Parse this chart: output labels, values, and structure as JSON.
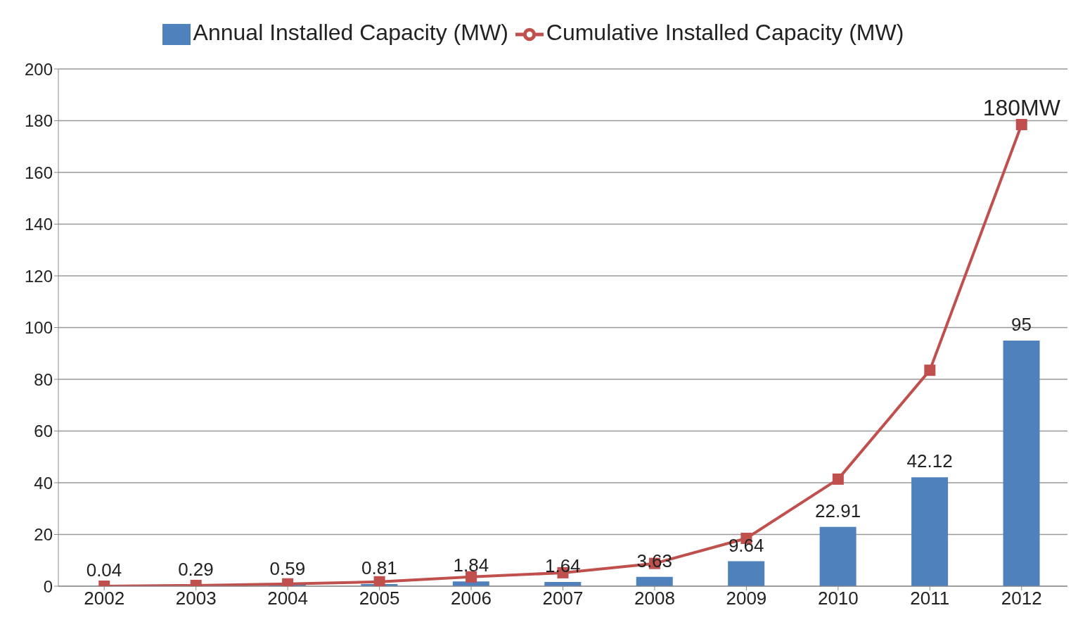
{
  "chart_data": {
    "type": "bar",
    "categories": [
      "2002",
      "2003",
      "2004",
      "2005",
      "2006",
      "2007",
      "2008",
      "2009",
      "2010",
      "2011",
      "2012"
    ],
    "series": [
      {
        "name": "Annual Installed Capacity (MW)",
        "color": "#4f81bd",
        "values": [
          0.04,
          0.29,
          0.59,
          0.81,
          1.84,
          1.64,
          3.63,
          9.64,
          22.91,
          42.12,
          95
        ],
        "value_labels": [
          "0.04",
          "0.29",
          "0.59",
          "0.81",
          "1.84",
          "1.64",
          "3.63",
          "9.64",
          "22.91",
          "42.12",
          "95"
        ]
      },
      {
        "name": "Cumulative Installed Capacity (MW)",
        "type": "line",
        "color": "#c0504d",
        "values": [
          0,
          0.3,
          0.9,
          1.7,
          3.6,
          5.2,
          8.8,
          18.5,
          41.4,
          83.5,
          178.5
        ]
      }
    ],
    "annotations": [
      {
        "text": "180MW",
        "x": "2012",
        "y": 180
      }
    ],
    "ylim": [
      0,
      200
    ],
    "yticks": [
      0,
      20,
      40,
      60,
      80,
      100,
      120,
      140,
      160,
      180,
      200
    ],
    "grid": "y",
    "legend": "top",
    "marker": "square",
    "line_style": "solid"
  }
}
